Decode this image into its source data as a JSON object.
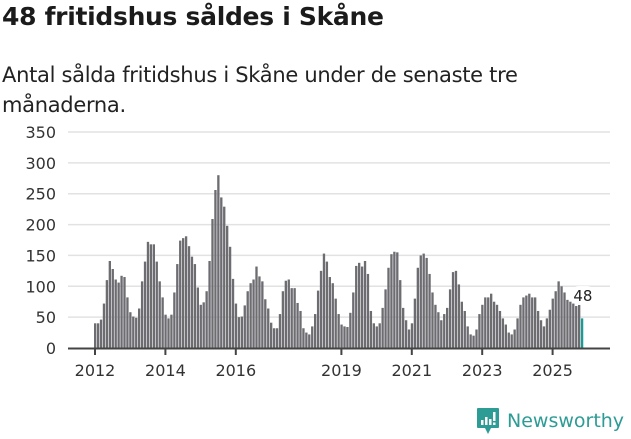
{
  "header": {
    "title": "48 fritidshus såldes i Skåne",
    "subtitle": "Antal sålda fritidshus i Skåne under de senaste tre månaderna."
  },
  "brand": {
    "name": "Newsworthy",
    "icon": "bar-chart-speech-bubble-icon",
    "color": "#2c9c95"
  },
  "colors": {
    "bar": "#6d6c71",
    "highlight": "#1a9c95",
    "grid": "#e2e2e2",
    "axis": "#444444"
  },
  "chart_data": {
    "type": "bar",
    "title": "48 fritidshus såldes i Skåne",
    "subtitle": "Antal sålda fritidshus i Skåne under de senaste tre månaderna.",
    "xlabel": "",
    "ylabel": "",
    "ylim": [
      0,
      350
    ],
    "yticks": [
      0,
      50,
      100,
      150,
      200,
      250,
      300,
      350
    ],
    "xticks": [
      "2012",
      "2014",
      "2016",
      "2019",
      "2021",
      "2023",
      "2025"
    ],
    "grid": true,
    "start": "2012-01",
    "frequency": "monthly",
    "annotation": {
      "text": "48",
      "index": 166
    },
    "values": [
      40,
      40,
      46,
      72,
      110,
      141,
      128,
      111,
      106,
      117,
      115,
      82,
      58,
      51,
      49,
      64,
      108,
      140,
      172,
      168,
      168,
      140,
      108,
      82,
      54,
      48,
      54,
      90,
      136,
      174,
      178,
      181,
      165,
      148,
      136,
      98,
      70,
      74,
      92,
      141,
      209,
      256,
      280,
      244,
      229,
      198,
      164,
      112,
      72,
      50,
      51,
      69,
      92,
      105,
      111,
      132,
      116,
      108,
      79,
      64,
      41,
      32,
      32,
      55,
      92,
      109,
      111,
      97,
      97,
      73,
      60,
      32,
      25,
      22,
      35,
      55,
      93,
      125,
      153,
      140,
      115,
      105,
      80,
      55,
      38,
      35,
      34,
      57,
      90,
      133,
      138,
      132,
      141,
      120,
      60,
      40,
      35,
      40,
      65,
      95,
      130,
      152,
      156,
      155,
      110,
      65,
      45,
      30,
      40,
      80,
      130,
      150,
      153,
      146,
      120,
      90,
      70,
      58,
      45,
      55,
      65,
      95,
      123,
      125,
      103,
      75,
      60,
      35,
      22,
      20,
      30,
      55,
      70,
      82,
      82,
      88,
      75,
      70,
      60,
      48,
      38,
      25,
      22,
      30,
      48,
      70,
      82,
      85,
      88,
      82,
      82,
      60,
      45,
      35,
      48,
      62,
      80,
      92,
      108,
      100,
      90,
      78,
      75,
      72,
      68,
      70,
      48
    ]
  }
}
